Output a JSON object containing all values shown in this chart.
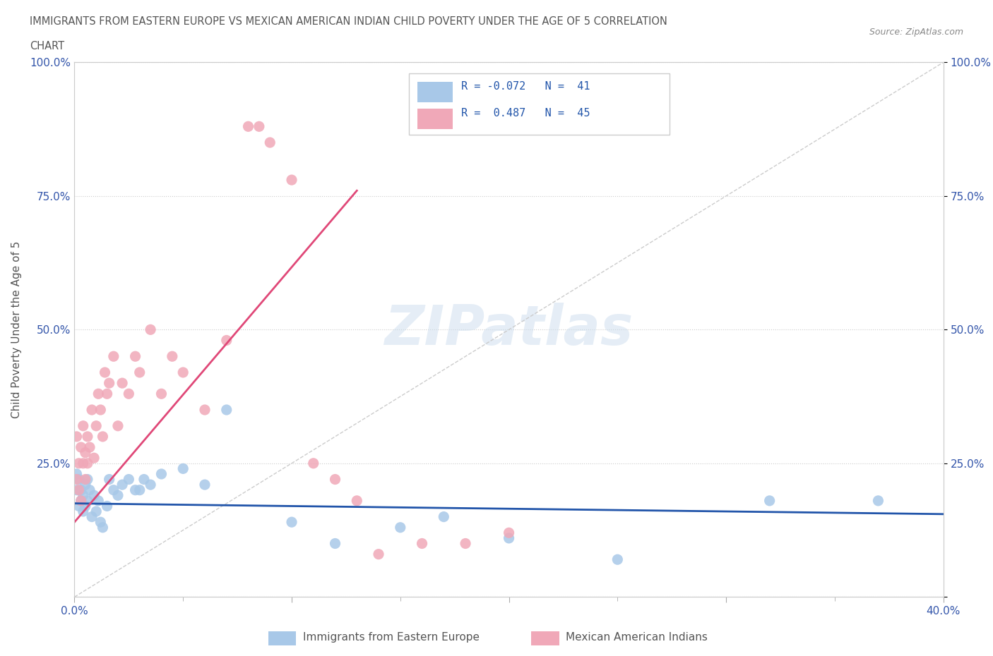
{
  "title_line1": "IMMIGRANTS FROM EASTERN EUROPE VS MEXICAN AMERICAN INDIAN CHILD POVERTY UNDER THE AGE OF 5 CORRELATION",
  "title_line2": "CHART",
  "source_text": "Source: ZipAtlas.com",
  "ylabel": "Child Poverty Under the Age of 5",
  "xlim": [
    0.0,
    0.4
  ],
  "ylim": [
    0.0,
    1.0
  ],
  "xticks": [
    0.0,
    0.1,
    0.2,
    0.3,
    0.4
  ],
  "xticklabels": [
    "0.0%",
    "",
    "",
    "",
    "40.0%"
  ],
  "yticks": [
    0.0,
    0.25,
    0.5,
    0.75,
    1.0
  ],
  "yticklabels_left": [
    "",
    "25.0%",
    "50.0%",
    "75.0%",
    "100.0%"
  ],
  "yticklabels_right": [
    "",
    "25.0%",
    "50.0%",
    "75.0%",
    "100.0%"
  ],
  "legend_text1": "R = -0.072   N =  41",
  "legend_text2": "R =  0.487   N =  45",
  "blue_color": "#A8C8E8",
  "pink_color": "#F0A8B8",
  "blue_line_color": "#2255AA",
  "pink_line_color": "#E04878",
  "watermark": "ZIPatlas",
  "blue_scatter_x": [
    0.001,
    0.001,
    0.002,
    0.002,
    0.003,
    0.003,
    0.004,
    0.004,
    0.005,
    0.005,
    0.006,
    0.006,
    0.007,
    0.008,
    0.009,
    0.01,
    0.011,
    0.012,
    0.013,
    0.015,
    0.016,
    0.018,
    0.02,
    0.022,
    0.025,
    0.028,
    0.03,
    0.032,
    0.035,
    0.04,
    0.05,
    0.06,
    0.07,
    0.1,
    0.12,
    0.15,
    0.17,
    0.2,
    0.25,
    0.32,
    0.37
  ],
  "blue_scatter_y": [
    0.2,
    0.23,
    0.17,
    0.22,
    0.18,
    0.2,
    0.19,
    0.16,
    0.21,
    0.17,
    0.22,
    0.18,
    0.2,
    0.15,
    0.19,
    0.16,
    0.18,
    0.14,
    0.13,
    0.17,
    0.22,
    0.2,
    0.19,
    0.21,
    0.22,
    0.2,
    0.2,
    0.22,
    0.21,
    0.23,
    0.24,
    0.21,
    0.35,
    0.14,
    0.1,
    0.13,
    0.15,
    0.11,
    0.07,
    0.18,
    0.18
  ],
  "pink_scatter_x": [
    0.001,
    0.001,
    0.002,
    0.002,
    0.003,
    0.003,
    0.004,
    0.004,
    0.005,
    0.005,
    0.006,
    0.006,
    0.007,
    0.008,
    0.009,
    0.01,
    0.011,
    0.012,
    0.013,
    0.014,
    0.015,
    0.016,
    0.018,
    0.02,
    0.022,
    0.025,
    0.028,
    0.03,
    0.035,
    0.04,
    0.045,
    0.05,
    0.06,
    0.07,
    0.08,
    0.085,
    0.09,
    0.1,
    0.11,
    0.12,
    0.13,
    0.14,
    0.16,
    0.18,
    0.2
  ],
  "pink_scatter_y": [
    0.22,
    0.3,
    0.25,
    0.2,
    0.28,
    0.18,
    0.32,
    0.25,
    0.27,
    0.22,
    0.3,
    0.25,
    0.28,
    0.35,
    0.26,
    0.32,
    0.38,
    0.35,
    0.3,
    0.42,
    0.38,
    0.4,
    0.45,
    0.32,
    0.4,
    0.38,
    0.45,
    0.42,
    0.5,
    0.38,
    0.45,
    0.42,
    0.35,
    0.48,
    0.88,
    0.88,
    0.85,
    0.78,
    0.25,
    0.22,
    0.18,
    0.08,
    0.1,
    0.1,
    0.12
  ],
  "pink_line_x": [
    0.0,
    0.13
  ],
  "pink_line_y": [
    0.14,
    0.76
  ],
  "blue_line_x": [
    0.0,
    0.4
  ],
  "blue_line_y": [
    0.175,
    0.155
  ]
}
